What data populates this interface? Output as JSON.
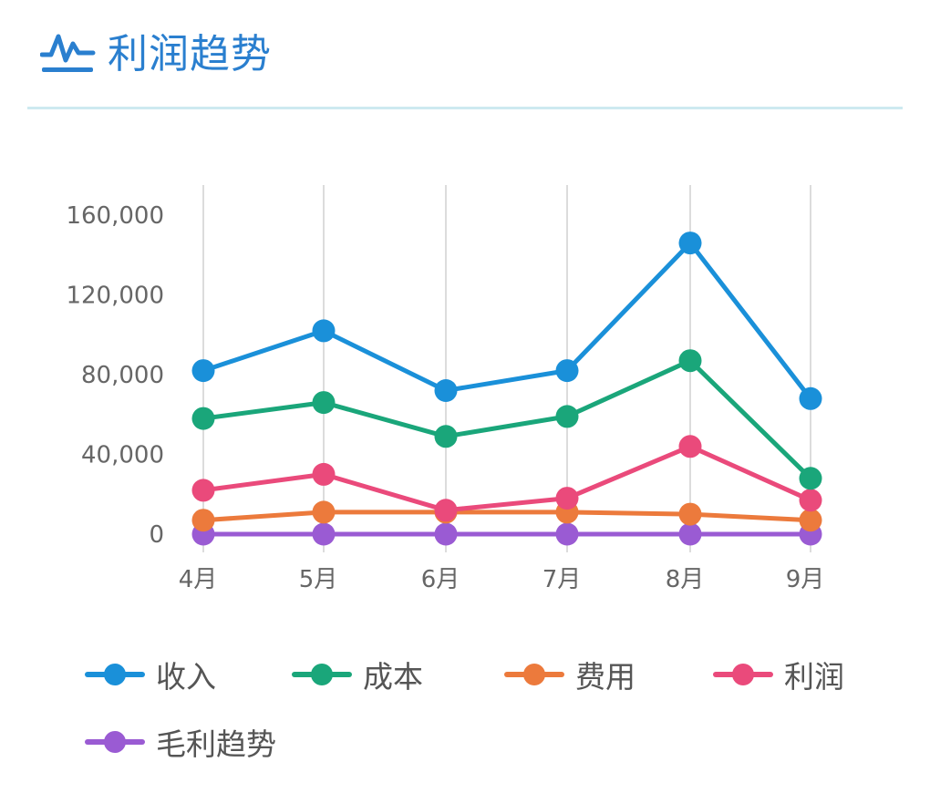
{
  "header": {
    "title": "利润趋势",
    "icon": "activity-line-icon",
    "icon_color": "#2a7fcf"
  },
  "legend": {
    "items": [
      {
        "label": "收入",
        "color": "#1a90d9"
      },
      {
        "label": "成本",
        "color": "#1aa67a"
      },
      {
        "label": "费用",
        "color": "#ec7a3c"
      },
      {
        "label": "利润",
        "color": "#ea4a7b"
      },
      {
        "label": "毛利趋势",
        "color": "#9a5bd3"
      }
    ]
  },
  "chart_data": {
    "type": "line",
    "categories": [
      "4月",
      "5月",
      "6月",
      "7月",
      "8月",
      "9月"
    ],
    "series": [
      {
        "name": "收入",
        "color": "#1a90d9",
        "values": [
          82000,
          102000,
          72000,
          82000,
          146000,
          68000
        ]
      },
      {
        "name": "成本",
        "color": "#1aa67a",
        "values": [
          58000,
          66000,
          49000,
          59000,
          87000,
          28000
        ]
      },
      {
        "name": "费用",
        "color": "#ec7a3c",
        "values": [
          7000,
          11000,
          11000,
          11000,
          10000,
          7000
        ]
      },
      {
        "name": "利润",
        "color": "#ea4a7b",
        "values": [
          22000,
          30000,
          12000,
          18000,
          44000,
          17000
        ]
      },
      {
        "name": "毛利趋势",
        "color": "#9a5bd3",
        "values": [
          0,
          0,
          0,
          0,
          0,
          0
        ]
      }
    ],
    "yticks": [
      0,
      40000,
      80000,
      120000,
      160000
    ],
    "ytick_labels": [
      "0",
      "40,000",
      "80,000",
      "120,000",
      "160,000"
    ],
    "ylim": [
      0,
      160000
    ],
    "grid": "vertical",
    "legend_position": "bottom"
  }
}
